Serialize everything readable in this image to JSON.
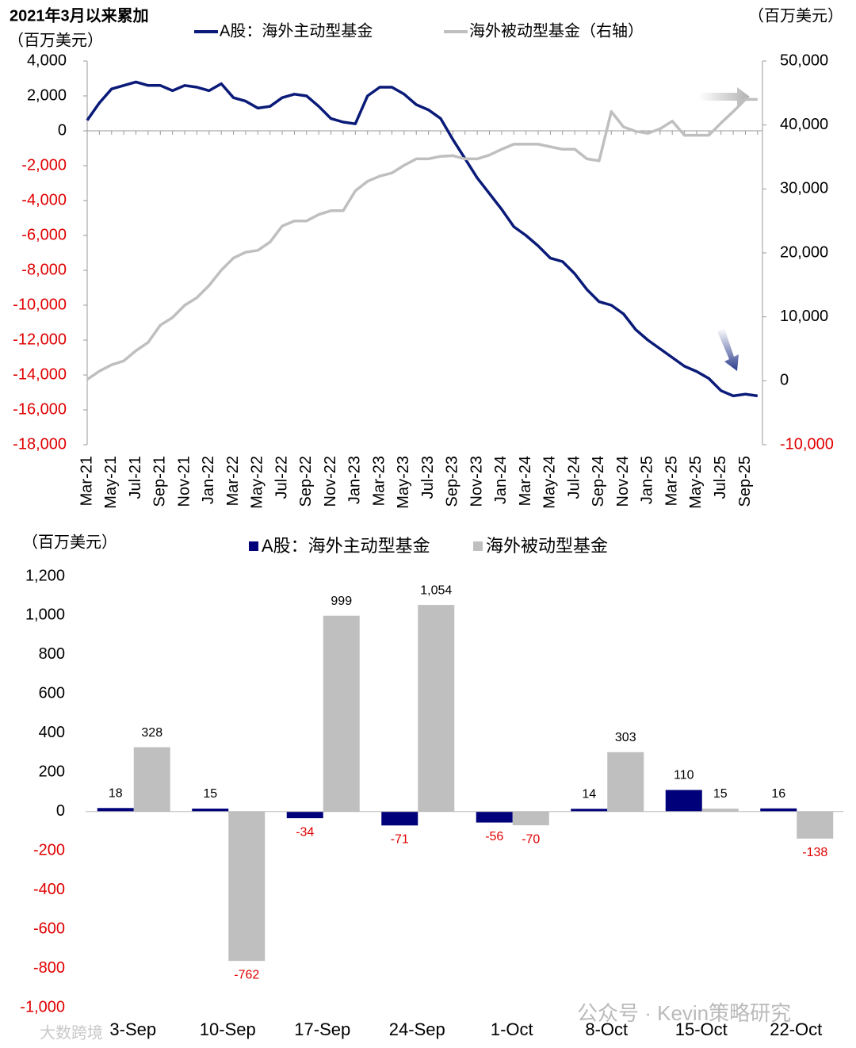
{
  "chart_data": [
    {
      "type": "line",
      "title": "2021年3月以来累加",
      "y_label": "（百万美元）",
      "y2_label": "（百万美元）",
      "categories": [
        "Mar-21",
        null,
        "May-21",
        null,
        "Jul-21",
        null,
        "Sep-21",
        null,
        "Nov-21",
        null,
        "Jan-22",
        null,
        "Mar-22",
        null,
        "May-22",
        null,
        "Jul-22",
        null,
        "Sep-22",
        null,
        "Nov-22",
        null,
        "Jan-23",
        null,
        "Mar-23",
        null,
        "May-23",
        null,
        "Jul-23",
        null,
        "Sep-23",
        null,
        "Nov-23",
        null,
        "Jan-24",
        null,
        "Mar-24",
        null,
        "May-24",
        null,
        "Jul-24",
        null,
        "Sep-24",
        null,
        "Nov-24",
        null,
        "Jan-25",
        null,
        "Mar-25",
        null,
        "May-25",
        null,
        "Jul-25",
        null,
        "Sep-25",
        null
      ],
      "series": [
        {
          "name": "A股：海外主动型基金",
          "color": "#0a1a78",
          "values": [
            600,
            1600,
            2400,
            2600,
            2800,
            2600,
            2600,
            2300,
            2600,
            2500,
            2300,
            2700,
            1900,
            1700,
            1300,
            1400,
            1900,
            2100,
            2000,
            1400,
            700,
            500,
            400,
            2000,
            2500,
            2500,
            2100,
            1500,
            1200,
            700,
            -500,
            -1600,
            -2700,
            -3600,
            -4500,
            -5500,
            -6000,
            -6600,
            -7300,
            -7500,
            -8200,
            -9100,
            -9800,
            -10000,
            -10500,
            -11400,
            -12000,
            -12500,
            -13000,
            -13500,
            -13800,
            -14200,
            -14900,
            -15200,
            -15100,
            -15200
          ]
        },
        {
          "name": "海外被动型基金（右轴）",
          "color": "#bfbfbf",
          "axis": "y2",
          "values": [
            200,
            1500,
            2500,
            3100,
            4700,
            6000,
            8700,
            9900,
            11800,
            13000,
            14900,
            17300,
            19200,
            20100,
            20400,
            21700,
            24200,
            25000,
            25000,
            26000,
            26600,
            26600,
            29700,
            31200,
            32000,
            32500,
            33700,
            34700,
            34700,
            35100,
            35200,
            34700,
            34700,
            35300,
            36200,
            37000,
            37000,
            37000,
            36600,
            36200,
            36200,
            34700,
            34400,
            42100,
            39700,
            39000,
            38700,
            39400,
            40600,
            38400,
            38400,
            38400,
            40300,
            42100,
            44000,
            44000
          ]
        }
      ],
      "ylim": [
        -18000,
        4000
      ],
      "yticks": [
        {
          "value": -18000,
          "label": "-18,000"
        },
        {
          "value": -16000,
          "label": "-16,000"
        },
        {
          "value": -14000,
          "label": "-14,000"
        },
        {
          "value": -12000,
          "label": "-12,000"
        },
        {
          "value": -10000,
          "label": "-10,000"
        },
        {
          "value": -8000,
          "label": "-8,000"
        },
        {
          "value": -6000,
          "label": "-6,000"
        },
        {
          "value": -4000,
          "label": "-4,000"
        },
        {
          "value": -2000,
          "label": "-2,000"
        },
        0,
        {
          "value": 2000,
          "label": "2,000"
        },
        {
          "value": 4000,
          "label": "4,000"
        }
      ],
      "y2lim": [
        -10000,
        50000
      ],
      "y2ticks": [
        {
          "value": -10000,
          "label": "-10,000"
        },
        0,
        {
          "value": 10000,
          "label": "10,000"
        },
        {
          "value": 20000,
          "label": "20,000"
        },
        {
          "value": 30000,
          "label": "30,000"
        },
        {
          "value": 40000,
          "label": "40,000"
        },
        {
          "value": 50000,
          "label": "50,000"
        }
      ],
      "negative_color": "#e00000"
    },
    {
      "type": "bar",
      "y_label": "（百万美元）",
      "categories": [
        "3-Sep",
        "10-Sep",
        "17-Sep",
        "24-Sep",
        "1-Oct",
        "8-Oct",
        "15-Oct",
        "22-Oct"
      ],
      "series": [
        {
          "name": "A股：海外主动型基金",
          "color": "#00007a",
          "values": [
            18,
            15,
            -34,
            -71,
            -56,
            14,
            110,
            16
          ]
        },
        {
          "name": "海外被动型基金",
          "color": "#bfbfbf",
          "values": [
            328,
            -762,
            999,
            1054,
            -70,
            303,
            15,
            -138
          ],
          "value_labels": [
            "328",
            "-762",
            "999",
            "1,054",
            "-70",
            "303",
            "15",
            "-138"
          ]
        }
      ],
      "ylim": [
        -1000,
        1200
      ],
      "yticks": [
        {
          "value": -1000,
          "label": "-1,000"
        },
        -800,
        -600,
        -400,
        -200,
        0,
        200,
        400,
        600,
        800,
        {
          "value": 1000,
          "label": "1,000"
        },
        {
          "value": 1200,
          "label": "1,200"
        }
      ],
      "negative_color": "#e00000"
    }
  ],
  "watermarks": [
    "公众号 · Kevin策略研究",
    "大数跨境"
  ]
}
